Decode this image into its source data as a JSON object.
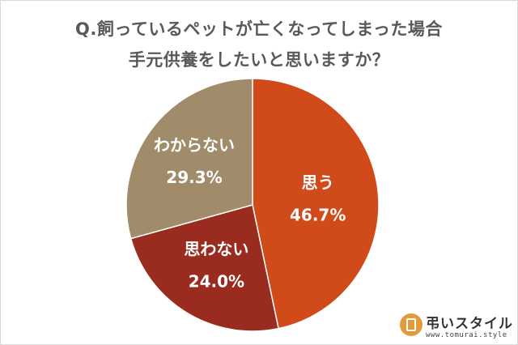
{
  "title_line1": "Q.飼っているペットが亡くなってしまった場合",
  "title_line2": "手元供養をしたいと思いますか？",
  "chart_data": {
    "type": "pie",
    "title": "Q.飼っているペットが亡くなってしまった場合 手元供養をしたいと思いますか？",
    "slices": [
      {
        "label": "思う",
        "value": 46.7,
        "display": "46.7%",
        "color": "#d04a1a"
      },
      {
        "label": "思わない",
        "value": 24.0,
        "display": "24.0%",
        "color": "#9a2b1f"
      },
      {
        "label": "わからない",
        "value": 29.3,
        "display": "29.3%",
        "color": "#a08c6b"
      }
    ],
    "start_angle": "12 o'clock",
    "direction": "clockwise"
  },
  "logo": {
    "name": "弔いスタイル",
    "url": "www.tomurai.style"
  }
}
